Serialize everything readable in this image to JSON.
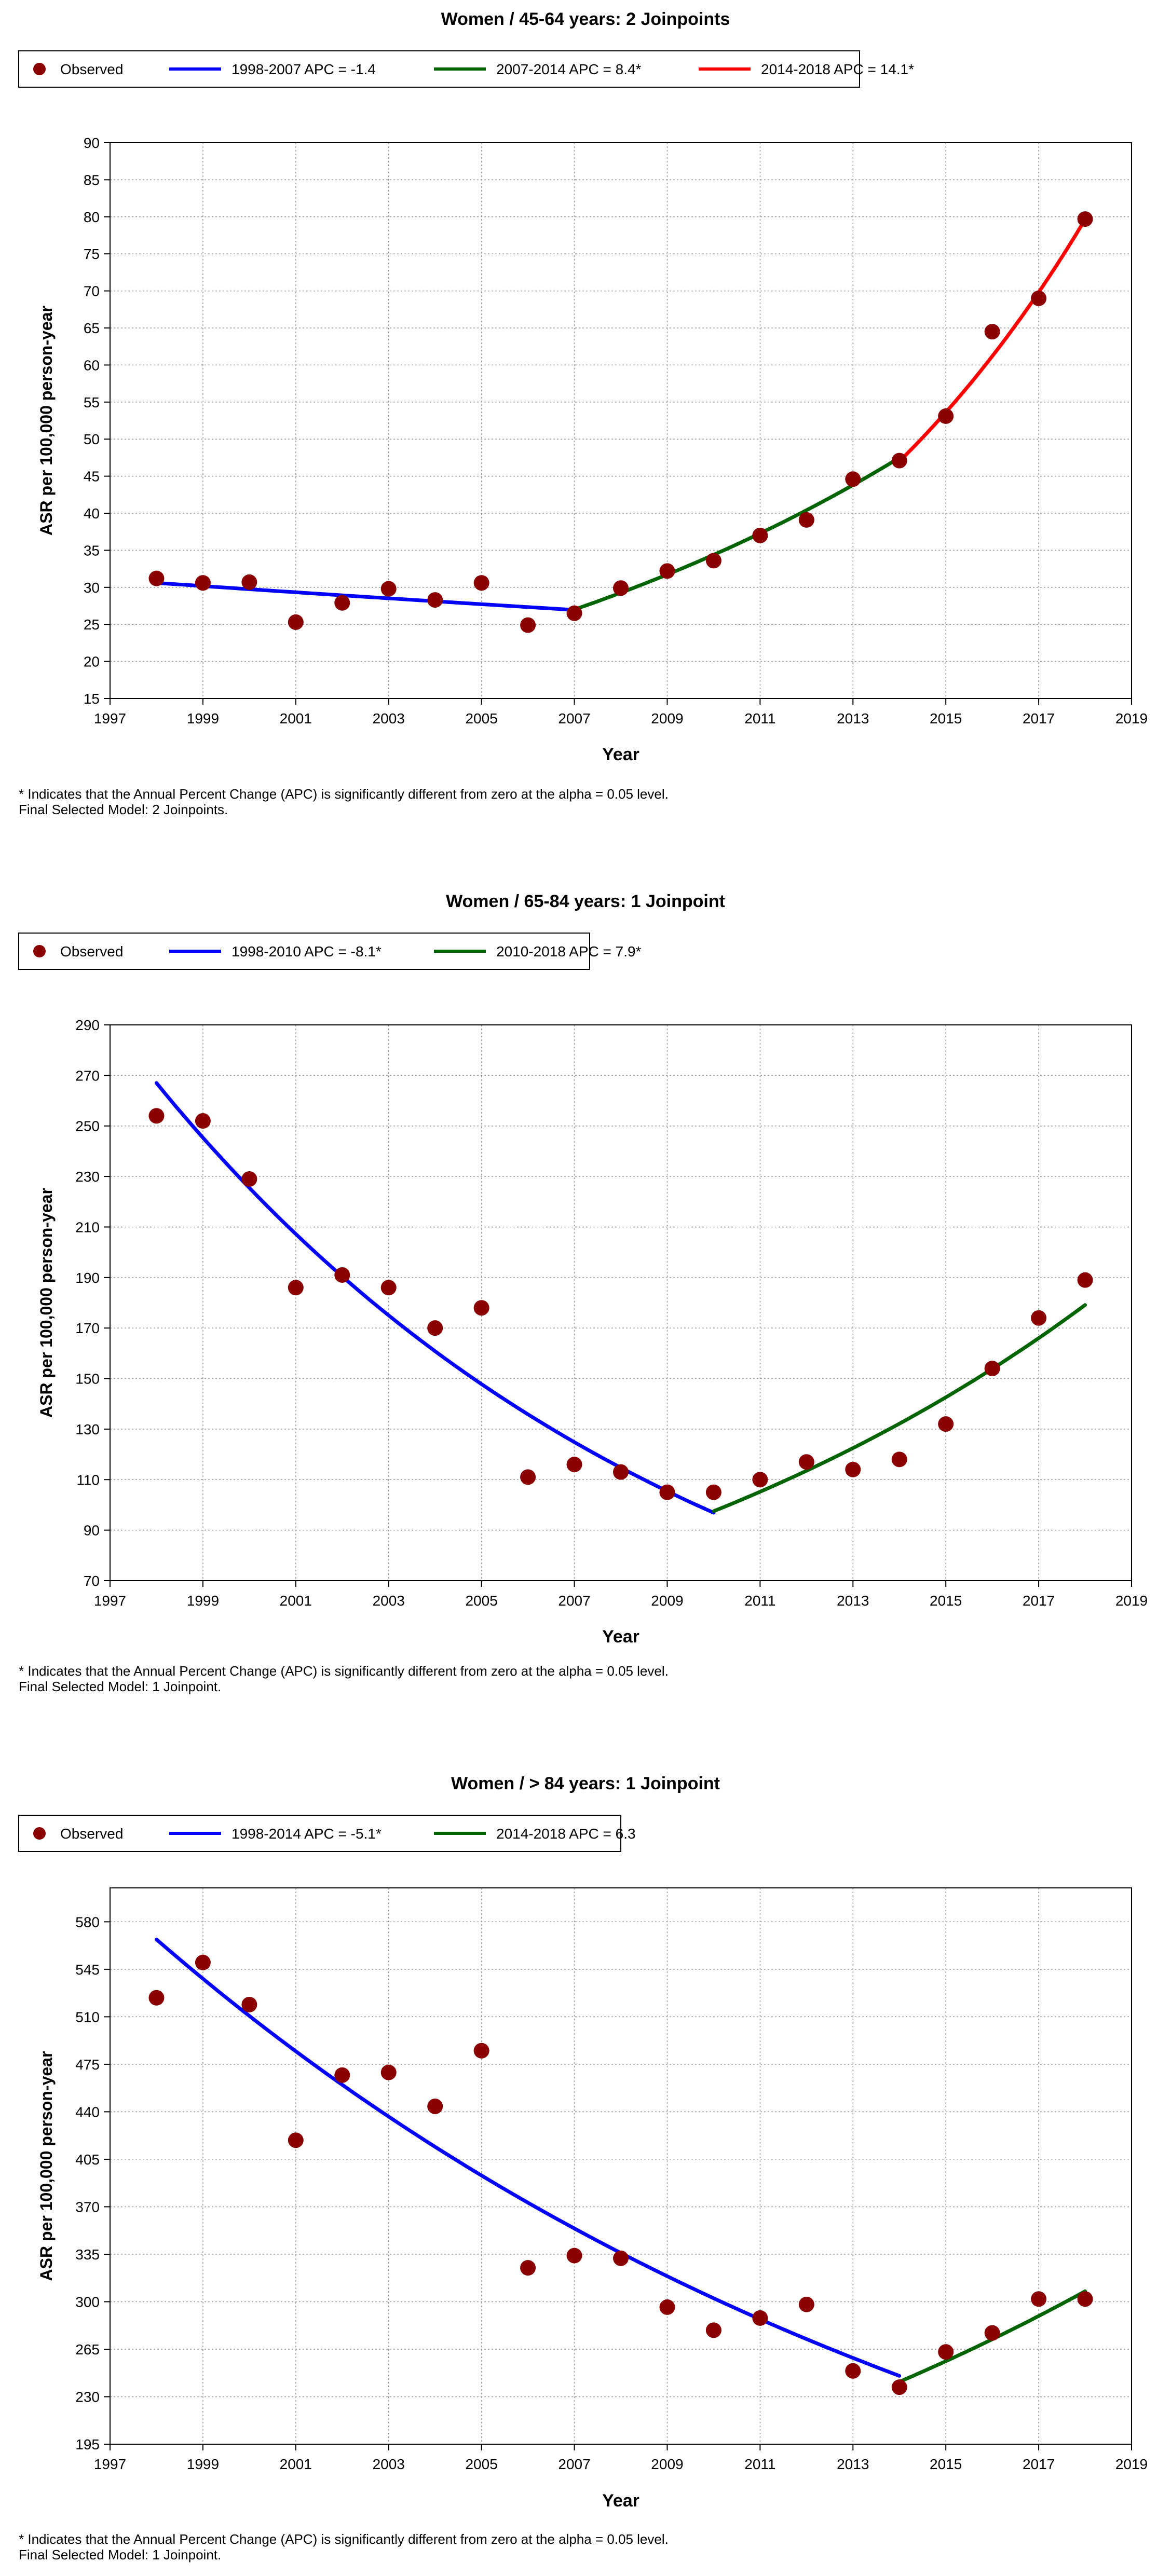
{
  "chart_data": [
    {
      "type": "scatter",
      "title": "Women / 45-64 years: 2 Joinpoints",
      "xlabel": "Year",
      "ylabel": "ASR per 100,000 person-year",
      "xlim": [
        1997,
        2019
      ],
      "ylim": [
        15,
        90
      ],
      "xticks": [
        1997,
        1999,
        2001,
        2003,
        2005,
        2007,
        2009,
        2011,
        2013,
        2015,
        2017,
        2019
      ],
      "yticks": [
        15,
        20,
        25,
        30,
        35,
        40,
        45,
        50,
        55,
        60,
        65,
        70,
        75,
        80,
        85,
        90
      ],
      "grid": true,
      "legend": {
        "position": "top-left",
        "items": [
          {
            "label": "Observed",
            "kind": "marker",
            "color": "#8b0000"
          },
          {
            "label": "1998-2007 APC  = -1.4",
            "kind": "line",
            "color": "#0000ff"
          },
          {
            "label": "2007-2014 APC  =  8.4*",
            "kind": "line",
            "color": "#006400"
          },
          {
            "label": "2014-2018 APC  = 14.1*",
            "kind": "line",
            "color": "#ff0000"
          }
        ]
      },
      "observed": {
        "x": [
          1998,
          1999,
          2000,
          2001,
          2002,
          2003,
          2004,
          2005,
          2006,
          2007,
          2008,
          2009,
          2010,
          2011,
          2012,
          2013,
          2014,
          2015,
          2016,
          2017,
          2018
        ],
        "y": [
          31.2,
          30.6,
          30.7,
          25.3,
          27.9,
          29.8,
          28.3,
          30.6,
          24.9,
          26.5,
          29.9,
          32.2,
          33.6,
          37.0,
          39.1,
          44.6,
          47.1,
          53.1,
          64.5,
          69.0,
          79.7
        ]
      },
      "segments": [
        {
          "name": "1998-2007",
          "x0": 1998,
          "x1": 2007,
          "y0": 30.6,
          "apc": -1.4,
          "color": "#0000ff"
        },
        {
          "name": "2007-2014",
          "x0": 2007,
          "x1": 2014,
          "y0": 27.0,
          "apc": 8.4,
          "color": "#006400"
        },
        {
          "name": "2014-2018",
          "x0": 2014,
          "x1": 2018,
          "y0": 47.0,
          "apc": 14.1,
          "color": "#ff0000"
        }
      ],
      "notes": [
        "* Indicates that the Annual Percent Change (APC) is significantly different from zero at the alpha = 0.05 level.",
        "Final Selected Model: 2 Joinpoints."
      ]
    },
    {
      "type": "scatter",
      "title": "Women / 65-84 years: 1 Joinpoint",
      "xlabel": "Year",
      "ylabel": "ASR per 100,000 person-year",
      "xlim": [
        1997,
        2019
      ],
      "ylim": [
        70,
        290
      ],
      "xticks": [
        1997,
        1999,
        2001,
        2003,
        2005,
        2007,
        2009,
        2011,
        2013,
        2015,
        2017,
        2019
      ],
      "yticks": [
        70,
        90,
        110,
        130,
        150,
        170,
        190,
        210,
        230,
        250,
        270,
        290
      ],
      "grid": true,
      "legend": {
        "position": "top-left",
        "items": [
          {
            "label": "Observed",
            "kind": "marker",
            "color": "#8b0000"
          },
          {
            "label": "1998-2010 APC  = -8.1*",
            "kind": "line",
            "color": "#0000ff"
          },
          {
            "label": "2010-2018 APC  =  7.9*",
            "kind": "line",
            "color": "#006400"
          }
        ]
      },
      "observed": {
        "x": [
          1998,
          1999,
          2000,
          2001,
          2002,
          2003,
          2004,
          2005,
          2006,
          2007,
          2008,
          2009,
          2010,
          2011,
          2012,
          2013,
          2014,
          2015,
          2016,
          2017,
          2018
        ],
        "y": [
          254,
          252,
          229,
          186,
          191,
          186,
          170,
          178,
          111,
          116,
          113,
          105,
          105,
          110,
          117,
          114,
          118,
          132,
          154,
          174,
          189
        ]
      },
      "segments": [
        {
          "name": "1998-2010",
          "x0": 1998,
          "x1": 2010,
          "y0": 267,
          "apc": -8.1,
          "color": "#0000ff"
        },
        {
          "name": "2010-2018",
          "x0": 2010,
          "x1": 2018,
          "y0": 97.5,
          "apc": 7.9,
          "color": "#006400"
        }
      ],
      "notes": [
        "* Indicates that the Annual Percent Change (APC) is significantly different from zero at the alpha = 0.05 level.",
        "Final Selected Model: 1 Joinpoint."
      ]
    },
    {
      "type": "scatter",
      "title": "Women / > 84 years: 1 Joinpoint",
      "xlabel": "Year",
      "ylabel": "ASR per 100,000 person-year",
      "xlim": [
        1997,
        2019
      ],
      "ylim": [
        195,
        605
      ],
      "xticks": [
        1997,
        1999,
        2001,
        2003,
        2005,
        2007,
        2009,
        2011,
        2013,
        2015,
        2017,
        2019
      ],
      "yticks": [
        195,
        230,
        265,
        300,
        335,
        370,
        405,
        440,
        475,
        510,
        545,
        580
      ],
      "grid": true,
      "legend": {
        "position": "top-left",
        "items": [
          {
            "label": "Observed",
            "kind": "marker",
            "color": "#8b0000"
          },
          {
            "label": "1998-2014 APC  = -5.1*",
            "kind": "line",
            "color": "#0000ff"
          },
          {
            "label": "2014-2018 APC  = 6.3",
            "kind": "line",
            "color": "#006400"
          }
        ]
      },
      "observed": {
        "x": [
          1998,
          1999,
          2000,
          2001,
          2002,
          2003,
          2004,
          2005,
          2006,
          2007,
          2008,
          2009,
          2010,
          2011,
          2012,
          2013,
          2014,
          2015,
          2016,
          2017,
          2018
        ],
        "y": [
          524,
          550,
          519,
          419,
          467,
          469,
          444,
          485,
          325,
          334,
          332,
          296,
          279,
          288,
          298,
          249,
          237,
          263,
          277,
          302,
          302
        ]
      },
      "segments": [
        {
          "name": "1998-2014",
          "x0": 1998,
          "x1": 2014,
          "y0": 567,
          "apc": -5.1,
          "color": "#0000ff"
        },
        {
          "name": "2014-2018",
          "x0": 2014,
          "x1": 2018,
          "y0": 241,
          "apc": 6.3,
          "color": "#006400"
        }
      ],
      "notes": [
        "* Indicates that the Annual Percent Change (APC) is significantly different from zero at the alpha = 0.05 level.",
        "Final Selected Model: 1 Joinpoint."
      ]
    }
  ]
}
